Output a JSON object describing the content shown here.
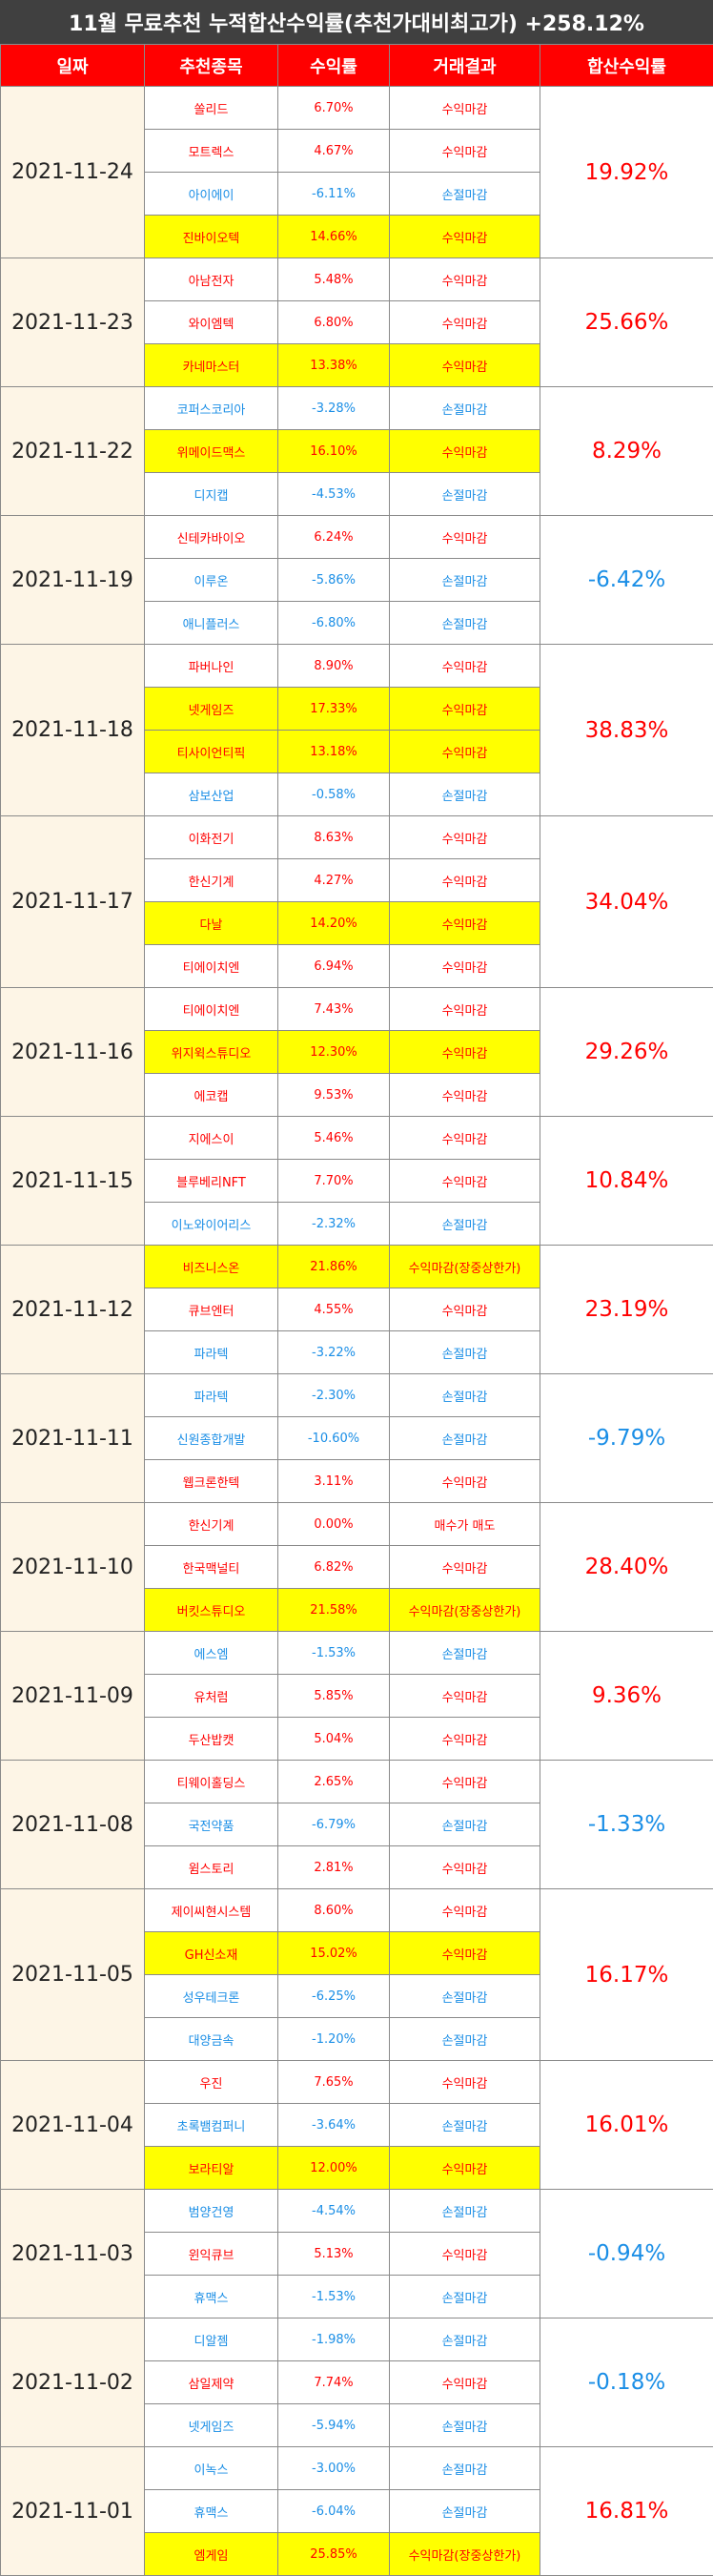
{
  "title": "11월 무료추천 누적합산수익률(추천가대비최고가) +258.12%",
  "headers": [
    "일짜",
    "추천종목",
    "수익률",
    "거래결과",
    "합산수익률"
  ],
  "colors": {
    "header_bg": "#ff0000",
    "title_bg": "#404040",
    "highlight": "#ffff00",
    "date_bg": "#fdf5e6",
    "up": "#ff0000",
    "down": "#1a8ee6"
  },
  "groups": [
    {
      "date": "2021-11-24",
      "total": "19.92%",
      "total_dir": "up",
      "rows": [
        {
          "stock": "쏠리드",
          "yield": "6.70%",
          "result": "수익마감",
          "dir": "up",
          "hl": false
        },
        {
          "stock": "모트렉스",
          "yield": "4.67%",
          "result": "수익마감",
          "dir": "up",
          "hl": false
        },
        {
          "stock": "아이에이",
          "yield": "-6.11%",
          "result": "손절마감",
          "dir": "down",
          "hl": false
        },
        {
          "stock": "진바이오텍",
          "yield": "14.66%",
          "result": "수익마감",
          "dir": "up",
          "hl": true
        }
      ]
    },
    {
      "date": "2021-11-23",
      "total": "25.66%",
      "total_dir": "up",
      "rows": [
        {
          "stock": "아남전자",
          "yield": "5.48%",
          "result": "수익마감",
          "dir": "up",
          "hl": false
        },
        {
          "stock": "와이엠텍",
          "yield": "6.80%",
          "result": "수익마감",
          "dir": "up",
          "hl": false
        },
        {
          "stock": "카네마스터",
          "yield": "13.38%",
          "result": "수익마감",
          "dir": "up",
          "hl": true
        }
      ]
    },
    {
      "date": "2021-11-22",
      "total": "8.29%",
      "total_dir": "up",
      "rows": [
        {
          "stock": "코퍼스코리아",
          "yield": "-3.28%",
          "result": "손절마감",
          "dir": "down",
          "hl": false
        },
        {
          "stock": "위메이드맥스",
          "yield": "16.10%",
          "result": "수익마감",
          "dir": "up",
          "hl": true
        },
        {
          "stock": "디지캡",
          "yield": "-4.53%",
          "result": "손절마감",
          "dir": "down",
          "hl": false
        }
      ]
    },
    {
      "date": "2021-11-19",
      "total": "-6.42%",
      "total_dir": "down",
      "rows": [
        {
          "stock": "신테카바이오",
          "yield": "6.24%",
          "result": "수익마감",
          "dir": "up",
          "hl": false
        },
        {
          "stock": "이루온",
          "yield": "-5.86%",
          "result": "손절마감",
          "dir": "down",
          "hl": false
        },
        {
          "stock": "애니플러스",
          "yield": "-6.80%",
          "result": "손절마감",
          "dir": "down",
          "hl": false
        }
      ]
    },
    {
      "date": "2021-11-18",
      "total": "38.83%",
      "total_dir": "up",
      "rows": [
        {
          "stock": "파버나인",
          "yield": "8.90%",
          "result": "수익마감",
          "dir": "up",
          "hl": false
        },
        {
          "stock": "넷게임즈",
          "yield": "17.33%",
          "result": "수익마감",
          "dir": "up",
          "hl": true
        },
        {
          "stock": "티사이언티픽",
          "yield": "13.18%",
          "result": "수익마감",
          "dir": "up",
          "hl": true
        },
        {
          "stock": "삼보산업",
          "yield": "-0.58%",
          "result": "손절마감",
          "dir": "down",
          "hl": false
        }
      ]
    },
    {
      "date": "2021-11-17",
      "total": "34.04%",
      "total_dir": "up",
      "rows": [
        {
          "stock": "이화전기",
          "yield": "8.63%",
          "result": "수익마감",
          "dir": "up",
          "hl": false
        },
        {
          "stock": "한신기계",
          "yield": "4.27%",
          "result": "수익마감",
          "dir": "up",
          "hl": false
        },
        {
          "stock": "다날",
          "yield": "14.20%",
          "result": "수익마감",
          "dir": "up",
          "hl": true
        },
        {
          "stock": "티에이치엔",
          "yield": "6.94%",
          "result": "수익마감",
          "dir": "up",
          "hl": false
        }
      ]
    },
    {
      "date": "2021-11-16",
      "total": "29.26%",
      "total_dir": "up",
      "rows": [
        {
          "stock": "티에이치엔",
          "yield": "7.43%",
          "result": "수익마감",
          "dir": "up",
          "hl": false
        },
        {
          "stock": "위지윅스튜디오",
          "yield": "12.30%",
          "result": "수익마감",
          "dir": "up",
          "hl": true
        },
        {
          "stock": "에코캡",
          "yield": "9.53%",
          "result": "수익마감",
          "dir": "up",
          "hl": false
        }
      ]
    },
    {
      "date": "2021-11-15",
      "total": "10.84%",
      "total_dir": "up",
      "rows": [
        {
          "stock": "지에스이",
          "yield": "5.46%",
          "result": "수익마감",
          "dir": "up",
          "hl": false
        },
        {
          "stock": "블루베리NFT",
          "yield": "7.70%",
          "result": "수익마감",
          "dir": "up",
          "hl": false
        },
        {
          "stock": "이노와이어리스",
          "yield": "-2.32%",
          "result": "손절마감",
          "dir": "down",
          "hl": false
        }
      ]
    },
    {
      "date": "2021-11-12",
      "total": "23.19%",
      "total_dir": "up",
      "rows": [
        {
          "stock": "비즈니스온",
          "yield": "21.86%",
          "result": "수익마감(장중상한가)",
          "dir": "up",
          "hl": true
        },
        {
          "stock": "큐브엔터",
          "yield": "4.55%",
          "result": "수익마감",
          "dir": "up",
          "hl": false
        },
        {
          "stock": "파라텍",
          "yield": "-3.22%",
          "result": "손절마감",
          "dir": "down",
          "hl": false
        }
      ]
    },
    {
      "date": "2021-11-11",
      "total": "-9.79%",
      "total_dir": "down",
      "rows": [
        {
          "stock": "파라텍",
          "yield": "-2.30%",
          "result": "손절마감",
          "dir": "down",
          "hl": false
        },
        {
          "stock": "신원종합개발",
          "yield": "-10.60%",
          "result": "손절마감",
          "dir": "down",
          "hl": false
        },
        {
          "stock": "웹크론한텍",
          "yield": "3.11%",
          "result": "수익마감",
          "dir": "up",
          "hl": false
        }
      ]
    },
    {
      "date": "2021-11-10",
      "total": "28.40%",
      "total_dir": "up",
      "rows": [
        {
          "stock": "한신기계",
          "yield": "0.00%",
          "result": "매수가 매도",
          "dir": "up",
          "hl": false
        },
        {
          "stock": "한국맥널티",
          "yield": "6.82%",
          "result": "수익마감",
          "dir": "up",
          "hl": false
        },
        {
          "stock": "버킷스튜디오",
          "yield": "21.58%",
          "result": "수익마감(장중상한가)",
          "dir": "up",
          "hl": true
        }
      ]
    },
    {
      "date": "2021-11-09",
      "total": "9.36%",
      "total_dir": "up",
      "rows": [
        {
          "stock": "에스엠",
          "yield": "-1.53%",
          "result": "손절마감",
          "dir": "down",
          "hl": false
        },
        {
          "stock": "유처럼",
          "yield": "5.85%",
          "result": "수익마감",
          "dir": "up",
          "hl": false
        },
        {
          "stock": "두산밥캣",
          "yield": "5.04%",
          "result": "수익마감",
          "dir": "up",
          "hl": false
        }
      ]
    },
    {
      "date": "2021-11-08",
      "total": "-1.33%",
      "total_dir": "down",
      "rows": [
        {
          "stock": "티웨이홀딩스",
          "yield": "2.65%",
          "result": "수익마감",
          "dir": "up",
          "hl": false
        },
        {
          "stock": "국전약품",
          "yield": "-6.79%",
          "result": "손절마감",
          "dir": "down",
          "hl": false
        },
        {
          "stock": "윔스토리",
          "yield": "2.81%",
          "result": "수익마감",
          "dir": "up",
          "hl": false
        }
      ]
    },
    {
      "date": "2021-11-05",
      "total": "16.17%",
      "total_dir": "up",
      "rows": [
        {
          "stock": "제이씨현시스템",
          "yield": "8.60%",
          "result": "수익마감",
          "dir": "up",
          "hl": false
        },
        {
          "stock": "GH신소재",
          "yield": "15.02%",
          "result": "수익마감",
          "dir": "up",
          "hl": true
        },
        {
          "stock": "성우테크론",
          "yield": "-6.25%",
          "result": "손절마감",
          "dir": "down",
          "hl": false
        },
        {
          "stock": "대양금속",
          "yield": "-1.20%",
          "result": "손절마감",
          "dir": "down",
          "hl": false
        }
      ]
    },
    {
      "date": "2021-11-04",
      "total": "16.01%",
      "total_dir": "up",
      "rows": [
        {
          "stock": "우진",
          "yield": "7.65%",
          "result": "수익마감",
          "dir": "up",
          "hl": false
        },
        {
          "stock": "초록뱀컴퍼니",
          "yield": "-3.64%",
          "result": "손절마감",
          "dir": "down",
          "hl": false
        },
        {
          "stock": "보라티알",
          "yield": "12.00%",
          "result": "수익마감",
          "dir": "up",
          "hl": true
        }
      ]
    },
    {
      "date": "2021-11-03",
      "total": "-0.94%",
      "total_dir": "down",
      "rows": [
        {
          "stock": "범양건영",
          "yield": "-4.54%",
          "result": "손절마감",
          "dir": "down",
          "hl": false
        },
        {
          "stock": "윈익큐브",
          "yield": "5.13%",
          "result": "수익마감",
          "dir": "up",
          "hl": false
        },
        {
          "stock": "휴맥스",
          "yield": "-1.53%",
          "result": "손절마감",
          "dir": "down",
          "hl": false
        }
      ]
    },
    {
      "date": "2021-11-02",
      "total": "-0.18%",
      "total_dir": "down",
      "rows": [
        {
          "stock": "디알젬",
          "yield": "-1.98%",
          "result": "손절마감",
          "dir": "down",
          "hl": false
        },
        {
          "stock": "삼일제약",
          "yield": "7.74%",
          "result": "수익마감",
          "dir": "up",
          "hl": false
        },
        {
          "stock": "넷게임즈",
          "yield": "-5.94%",
          "result": "손절마감",
          "dir": "down",
          "hl": false
        }
      ]
    },
    {
      "date": "2021-11-01",
      "total": "16.81%",
      "total_dir": "up",
      "rows": [
        {
          "stock": "이녹스",
          "yield": "-3.00%",
          "result": "손절마감",
          "dir": "down",
          "hl": false
        },
        {
          "stock": "휴맥스",
          "yield": "-6.04%",
          "result": "손절마감",
          "dir": "down",
          "hl": false
        },
        {
          "stock": "엠게임",
          "yield": "25.85%",
          "result": "수익마감(장중상한가)",
          "dir": "up",
          "hl": true
        }
      ]
    }
  ]
}
